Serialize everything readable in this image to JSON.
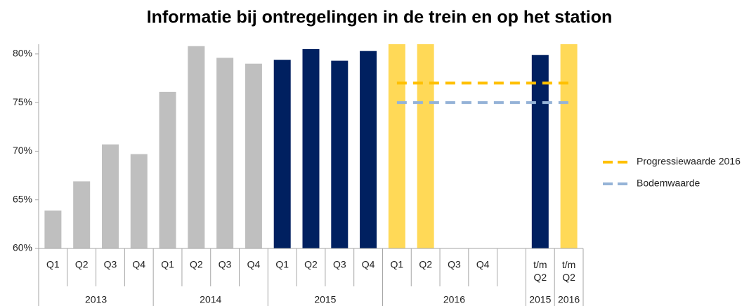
{
  "chart_data": {
    "type": "bar",
    "title": "Informatie bij ontregelingen in de trein en op het station",
    "categories": [
      "Q1",
      "Q2",
      "Q3",
      "Q4",
      "Q1",
      "Q2",
      "Q3",
      "Q4",
      "Q1",
      "Q2",
      "Q3",
      "Q4",
      "Q1",
      "Q2",
      "Q3",
      "Q4",
      null,
      "t/m Q2",
      "t/m Q2"
    ],
    "groups": [
      {
        "label": "2013",
        "size": 4
      },
      {
        "label": "2014",
        "size": 4
      },
      {
        "label": "2015",
        "size": 4
      },
      {
        "label": "2016",
        "size": 5
      },
      {
        "label": "2015",
        "size": 1
      },
      {
        "label": "2016",
        "size": 1
      }
    ],
    "values": [
      63.9,
      66.9,
      70.7,
      69.7,
      76.1,
      80.8,
      79.6,
      79.0,
      79.4,
      80.5,
      79.3,
      80.3,
      81,
      81,
      null,
      null,
      null,
      79.9,
      81
    ],
    "bar_colors": [
      "#bfbfbf",
      "#bfbfbf",
      "#bfbfbf",
      "#bfbfbf",
      "#bfbfbf",
      "#bfbfbf",
      "#bfbfbf",
      "#bfbfbf",
      "#002060",
      "#002060",
      "#002060",
      "#002060",
      "#ffd957",
      "#ffd957",
      "#ffd957",
      "#ffd957",
      "#ffd957",
      "#002060",
      "#ffd957"
    ],
    "lines": [
      {
        "name": "Progressiewaarde 2016",
        "color": "#ffc000",
        "values": [
          null,
          null,
          null,
          null,
          null,
          null,
          null,
          null,
          null,
          null,
          null,
          null,
          77,
          77,
          77,
          77,
          77,
          77,
          77
        ]
      },
      {
        "name": "Bodemwaarde",
        "color": "#95b3d7",
        "values": [
          null,
          null,
          null,
          null,
          null,
          null,
          null,
          null,
          null,
          null,
          null,
          null,
          75,
          75,
          75,
          75,
          75,
          75,
          75
        ]
      }
    ],
    "ylim": [
      60,
      81
    ],
    "yticks": [
      {
        "value": 60,
        "label": "60%"
      },
      {
        "value": 65,
        "label": "65%"
      },
      {
        "value": 70,
        "label": "70%"
      },
      {
        "value": 75,
        "label": "75%"
      },
      {
        "value": 80,
        "label": "80%"
      }
    ],
    "legend": "right"
  }
}
